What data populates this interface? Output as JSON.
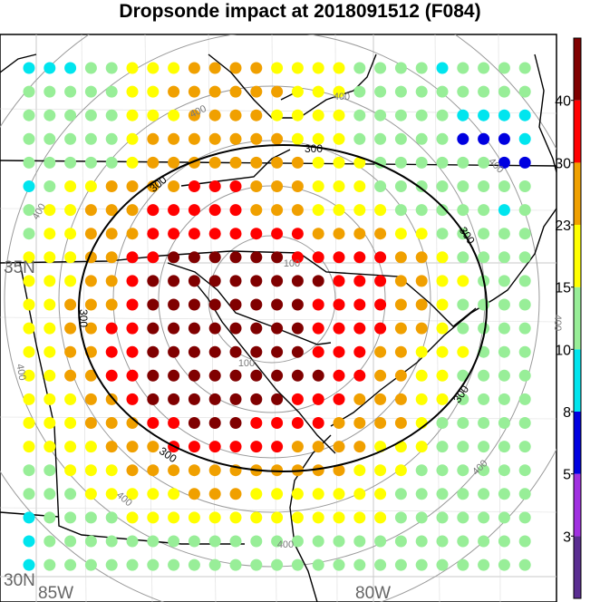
{
  "title": "Dropsonde impact at 2018091512 (F084)",
  "axes": {
    "lat_labels": [
      "35N",
      "30N"
    ],
    "lon_labels": [
      "85W",
      "80W"
    ]
  },
  "range_ring_labels": {
    "r100": "100",
    "r300": "300",
    "r400": "400"
  },
  "colorbar": {
    "tick_labels": [
      "3",
      "5",
      "8",
      "10",
      "15",
      "23",
      "30",
      "40"
    ],
    "colors": [
      "#5a2d91",
      "#a030e0",
      "#0000e0",
      "#00e5ee",
      "#98ee98",
      "#ffff00",
      "#f0a000",
      "#ff0000",
      "#800000"
    ]
  },
  "chart_data": {
    "type": "heatmap",
    "title": "Dropsonde impact at 2018091512 (F084)",
    "legend_placement": "right colorbar",
    "grid": true,
    "levels": [
      3,
      5,
      8,
      10,
      15,
      23,
      30,
      40
    ],
    "class_colors": [
      "#5a2d91",
      "#a030e0",
      "#0000e0",
      "#00e5ee",
      "#98ee98",
      "#ffff00",
      "#f0a000",
      "#ff0000",
      "#800000"
    ],
    "class_codes_note": "each digit is a color class index into class_colors: 0 <3, 1 3-5, 2 5-8, 3 8-10, 4 10-15, 5 15-23, 6 23-30, 7 30-40, 8 >40",
    "rows": [
      "3334455566665555444434444",
      "4444455666666555444444444",
      "4444455566665555444443333",
      "4444456666666555444442223",
      "4444456666666655544444422",
      "3455666677766655544444444",
      "4556667777766655554444434",
      "4556667777777766665544444",
      "5556677888888777776654444",
      "5556678888888887776655444",
      "5566678888888877776654444",
      "5566778888888877776654444",
      "5566778888888877766555444",
      "5566778888888887766554444",
      "5556678888888777666554444",
      "5556667788877776666544444",
      "5555666777777666655544444",
      "4455566666666666555444444",
      "4445555566655555554444444",
      "3444455555555555554444444",
      "3444444444444444444444444",
      "3444444444444444444444444"
    ]
  }
}
